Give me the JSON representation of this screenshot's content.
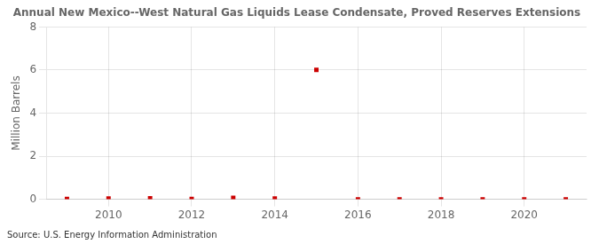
{
  "chart_data": {
    "type": "scatter",
    "title": "Annual New Mexico--West Natural Gas Liquids Lease Condensate, Proved Reserves Extensions",
    "ylabel": "Million Barrels",
    "annotations": [
      "Source: U.S. Energy Information Administration"
    ],
    "x": [
      2009,
      2010,
      2011,
      2012,
      2013,
      2014,
      2015,
      2016,
      2017,
      2018,
      2019,
      2020,
      2021
    ],
    "values": [
      0.02,
      0.04,
      0.05,
      0.02,
      0.07,
      0.04,
      6.01,
      0.0,
      0.0,
      0.0,
      0.0,
      0.0,
      0.0
    ],
    "color": "#cc0000",
    "marker": "square",
    "xlim": [
      2008.5,
      2021.5
    ],
    "xticks": [
      2010,
      2012,
      2014,
      2016,
      2018,
      2020
    ],
    "ylim": [
      0,
      8
    ],
    "yticks": [
      0,
      2,
      4,
      6,
      8
    ],
    "grid": true
  }
}
